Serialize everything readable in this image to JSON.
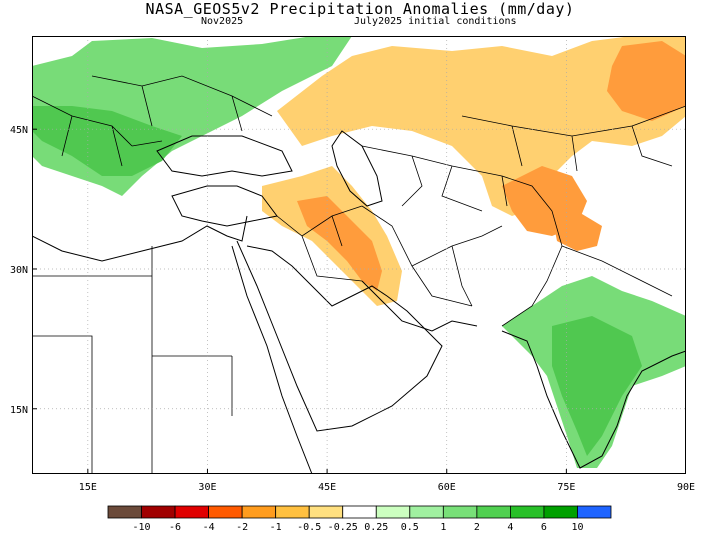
{
  "header": {
    "title": "NASA_GEOS5v2 Precipitation Anomalies (mm/day)",
    "target_month": "Nov2025",
    "initial_conditions": "July2025 initial conditions"
  },
  "map": {
    "lon_range": [
      8,
      90
    ],
    "lat_range": [
      8,
      55
    ],
    "lon_ticks": [
      {
        "value": 15,
        "label": "15E"
      },
      {
        "value": 30,
        "label": "30E"
      },
      {
        "value": 45,
        "label": "45E"
      },
      {
        "value": 60,
        "label": "60E"
      },
      {
        "value": 75,
        "label": "75E"
      },
      {
        "value": 90,
        "label": "90E"
      }
    ],
    "lat_ticks": [
      {
        "value": 45,
        "label": "45N"
      },
      {
        "value": 30,
        "label": "30N"
      },
      {
        "value": 15,
        "label": "15N"
      }
    ],
    "gridlines": "dotted"
  },
  "colorbar": {
    "colors": [
      "#6b4a3a",
      "#a00000",
      "#e00000",
      "#ff5a00",
      "#ff9c1e",
      "#ffc040",
      "#ffe080",
      "#ffffff",
      "#ccffc0",
      "#a0f0a0",
      "#78e078",
      "#50d050",
      "#28c028",
      "#00a000",
      "#1e64ff"
    ],
    "labels": [
      "-10",
      "-6",
      "-4",
      "-2",
      "-1",
      "-0.5",
      "-0.25",
      "0.25",
      "0.5",
      "1",
      "2",
      "4",
      "6",
      "10"
    ]
  },
  "regions": {
    "wetter": "#78dc78",
    "drier": "#ffd070",
    "very_drier": "#ff9c3c"
  }
}
